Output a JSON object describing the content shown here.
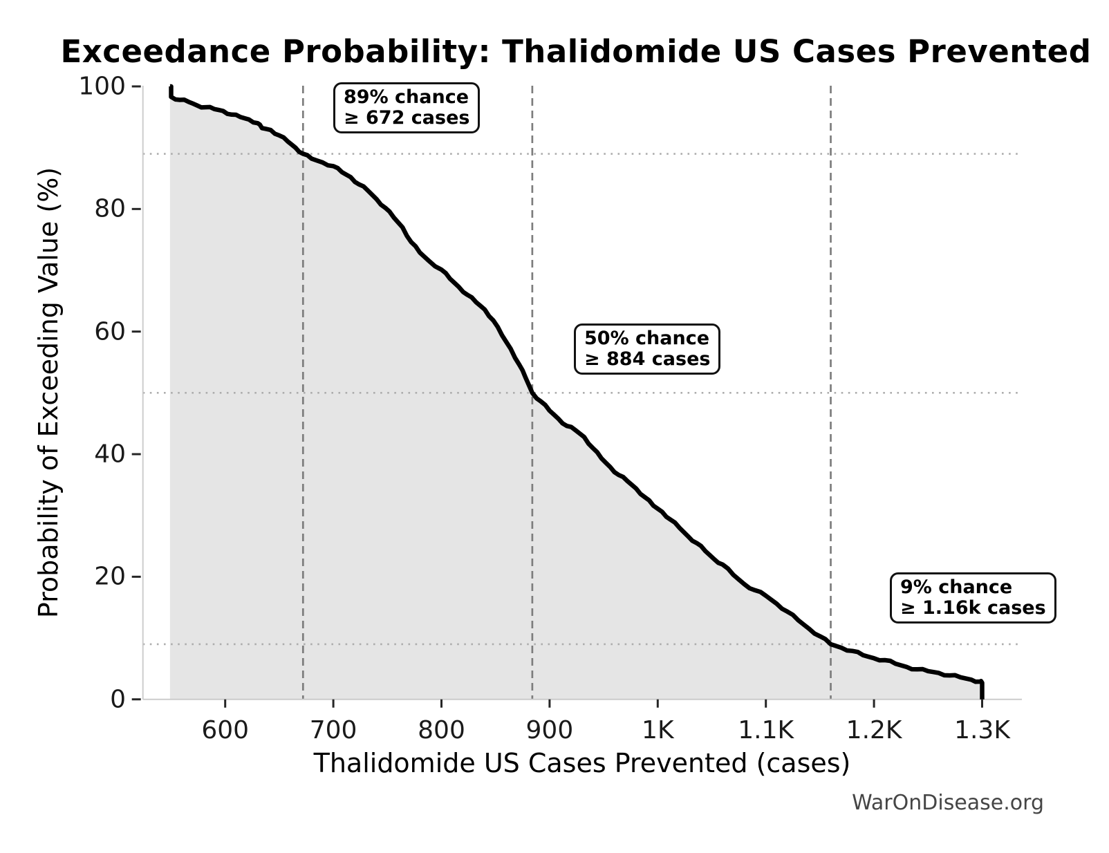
{
  "title": "Exceedance Probability: Thalidomide US Cases Prevented",
  "watermark": "WarOnDisease.org",
  "chart_data": {
    "type": "line",
    "subtype": "exceedance-probability-curve",
    "title": "Exceedance Probability: Thalidomide US Cases Prevented",
    "xlabel": "Thalidomide US Cases Prevented (cases)",
    "ylabel": "Probability of Exceeding Value (%)",
    "xlim": [
      524,
      1337
    ],
    "ylim": [
      0,
      100
    ],
    "grid": "off (reference lines only)",
    "legend": "none",
    "x_ticks": [
      {
        "value": 600,
        "label": "600"
      },
      {
        "value": 700,
        "label": "700"
      },
      {
        "value": 800,
        "label": "800"
      },
      {
        "value": 900,
        "label": "900"
      },
      {
        "value": 1000,
        "label": "1K"
      },
      {
        "value": 1100,
        "label": "1.1K"
      },
      {
        "value": 1200,
        "label": "1.2K"
      },
      {
        "value": 1300,
        "label": "1.3K"
      }
    ],
    "y_ticks": [
      {
        "value": 0,
        "label": "0"
      },
      {
        "value": 20,
        "label": "20"
      },
      {
        "value": 40,
        "label": "40"
      },
      {
        "value": 60,
        "label": "60"
      },
      {
        "value": 80,
        "label": "80"
      },
      {
        "value": 100,
        "label": "100"
      }
    ],
    "reference_lines": {
      "vertical_dashed_at_cases": [
        672,
        884,
        1160
      ],
      "horizontal_dotted_at_pct": [
        89,
        50,
        9
      ]
    },
    "annotations": [
      {
        "line1": "89% chance",
        "line2": "≥ 672 cases",
        "cases": 672,
        "pct": 89
      },
      {
        "line1": "50% chance",
        "line2": "≥ 884 cases",
        "cases": 884,
        "pct": 50
      },
      {
        "line1": "9% chance",
        "line2": "≥ 1.16k cases",
        "cases": 1160,
        "pct": 9
      }
    ],
    "series": [
      {
        "name": "Exceedance probability",
        "points": [
          [
            549,
            100
          ],
          [
            550,
            100
          ],
          [
            550,
            98.3
          ],
          [
            558,
            97.8
          ],
          [
            566,
            97.5
          ],
          [
            574,
            96.9
          ],
          [
            582,
            96.6
          ],
          [
            590,
            96.3
          ],
          [
            598,
            96.0
          ],
          [
            606,
            95.4
          ],
          [
            614,
            95.0
          ],
          [
            622,
            94.6
          ],
          [
            630,
            94.0
          ],
          [
            634,
            93.2
          ],
          [
            642,
            92.9
          ],
          [
            650,
            92.0
          ],
          [
            658,
            91.0
          ],
          [
            665,
            90.0
          ],
          [
            672,
            89.0
          ],
          [
            680,
            88.2
          ],
          [
            690,
            87.6
          ],
          [
            700,
            87.0
          ],
          [
            708,
            86.0
          ],
          [
            716,
            85.2
          ],
          [
            724,
            84.0
          ],
          [
            732,
            83.0
          ],
          [
            740,
            81.6
          ],
          [
            748,
            80.2
          ],
          [
            756,
            78.6
          ],
          [
            764,
            77.0
          ],
          [
            772,
            74.6
          ],
          [
            780,
            72.9
          ],
          [
            788,
            71.6
          ],
          [
            800,
            70.1
          ],
          [
            808,
            68.6
          ],
          [
            816,
            67.3
          ],
          [
            824,
            66.0
          ],
          [
            832,
            64.8
          ],
          [
            840,
            63.6
          ],
          [
            848,
            61.8
          ],
          [
            856,
            59.4
          ],
          [
            864,
            57.2
          ],
          [
            872,
            54.6
          ],
          [
            878,
            52.4
          ],
          [
            884,
            50.0
          ],
          [
            892,
            48.6
          ],
          [
            900,
            47.1
          ],
          [
            908,
            45.8
          ],
          [
            916,
            44.6
          ],
          [
            924,
            43.9
          ],
          [
            932,
            42.8
          ],
          [
            940,
            41.0
          ],
          [
            948,
            39.3
          ],
          [
            956,
            37.9
          ],
          [
            964,
            36.6
          ],
          [
            972,
            35.6
          ],
          [
            980,
            34.4
          ],
          [
            988,
            33.0
          ],
          [
            996,
            31.6
          ],
          [
            1004,
            30.6
          ],
          [
            1012,
            29.3
          ],
          [
            1020,
            28.0
          ],
          [
            1028,
            26.6
          ],
          [
            1036,
            25.5
          ],
          [
            1044,
            24.2
          ],
          [
            1052,
            22.9
          ],
          [
            1060,
            22.0
          ],
          [
            1070,
            20.3
          ],
          [
            1080,
            18.8
          ],
          [
            1090,
            17.8
          ],
          [
            1100,
            16.9
          ],
          [
            1110,
            15.6
          ],
          [
            1120,
            14.3
          ],
          [
            1130,
            12.9
          ],
          [
            1140,
            11.5
          ],
          [
            1150,
            10.3
          ],
          [
            1160,
            9.0
          ],
          [
            1170,
            8.4
          ],
          [
            1180,
            7.9
          ],
          [
            1190,
            7.2
          ],
          [
            1200,
            6.7
          ],
          [
            1210,
            6.4
          ],
          [
            1220,
            5.8
          ],
          [
            1230,
            5.3
          ],
          [
            1240,
            4.9
          ],
          [
            1250,
            4.6
          ],
          [
            1260,
            4.3
          ],
          [
            1270,
            3.9
          ],
          [
            1280,
            3.6
          ],
          [
            1290,
            3.2
          ],
          [
            1298,
            2.9
          ],
          [
            1300,
            2.7
          ],
          [
            1300,
            0
          ]
        ]
      }
    ],
    "colors": {
      "curve": "#000000",
      "fill_under_curve": "#e5e5e5",
      "dashed_line": "#7d7d7d",
      "dotted_line": "#adadad",
      "spine": "#cccccc",
      "tick_mark": "#262626",
      "text": "#000000",
      "watermark": "#454545"
    }
  }
}
